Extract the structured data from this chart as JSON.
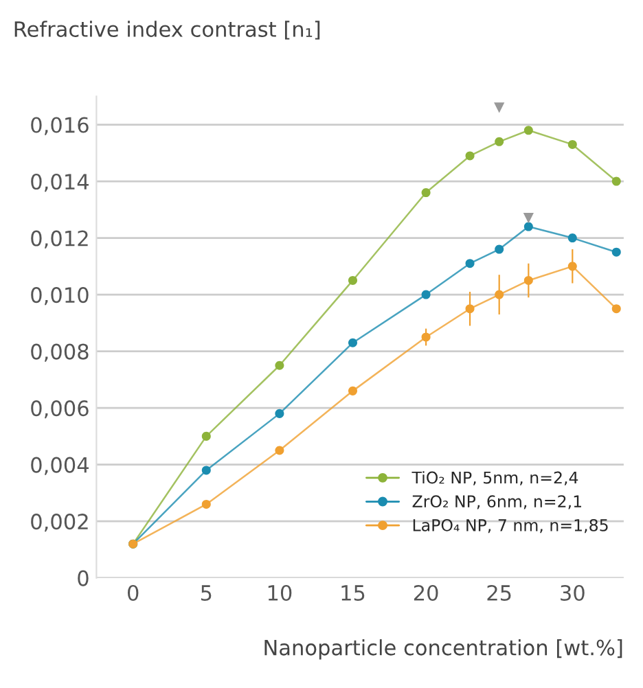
{
  "chart_data": {
    "type": "line",
    "ylabel": "Refractive index contrast [n₁]",
    "xlabel": "Nanoparticle concentration [wt.%]",
    "xlim": [
      -2.5,
      33.5
    ],
    "xticks": [
      0,
      5,
      10,
      15,
      20,
      25,
      30
    ],
    "ylim": [
      0,
      0.017
    ],
    "yticks": [
      {
        "value": 0,
        "label": "0"
      },
      {
        "value": 0.002,
        "label": "0,002"
      },
      {
        "value": 0.004,
        "label": "0,004"
      },
      {
        "value": 0.006,
        "label": "0,006"
      },
      {
        "value": 0.008,
        "label": "0,008"
      },
      {
        "value": 0.01,
        "label": "0,010"
      },
      {
        "value": 0.012,
        "label": "0,012"
      },
      {
        "value": 0.014,
        "label": "0,014"
      },
      {
        "value": 0.016,
        "label": "0,016"
      }
    ],
    "grid": "y",
    "legend": "bottom right",
    "marker": "circle",
    "series": [
      {
        "name": "TiO₂ NP, 5nm, n=2,4",
        "color": "#8db33a",
        "x": [
          0,
          5,
          10,
          15,
          20,
          23,
          25,
          27,
          30,
          33
        ],
        "values": [
          0.0012,
          0.005,
          0.0075,
          0.0105,
          0.0136,
          0.0149,
          0.0154,
          0.0158,
          0.0153,
          0.014
        ]
      },
      {
        "name": "ZrO₂ NP, 6nm, n=2,1",
        "color": "#1a8cb0",
        "x": [
          0,
          5,
          10,
          15,
          20,
          23,
          25,
          27,
          30,
          33
        ],
        "values": [
          0.0012,
          0.0038,
          0.0058,
          0.0083,
          0.01,
          0.0111,
          0.0116,
          0.0124,
          0.012,
          0.0115
        ]
      },
      {
        "name": "LaPO₄ NP, 7 nm, n=1,85",
        "color": "#f0a030",
        "x": [
          0,
          5,
          10,
          15,
          20,
          23,
          25,
          27,
          30,
          33
        ],
        "values": [
          0.0012,
          0.0026,
          0.0045,
          0.0066,
          0.0085,
          0.0095,
          0.01,
          0.0105,
          0.011,
          0.0095
        ],
        "errors": [
          null,
          null,
          null,
          null,
          0.0003,
          0.0006,
          0.0007,
          0.0006,
          0.0006,
          null
        ]
      },
      {
        "type": "scatter",
        "color": "#999999",
        "marker": "triangle",
        "x": [
          25,
          27
        ],
        "values": [
          0.0166,
          0.0127
        ]
      }
    ]
  }
}
